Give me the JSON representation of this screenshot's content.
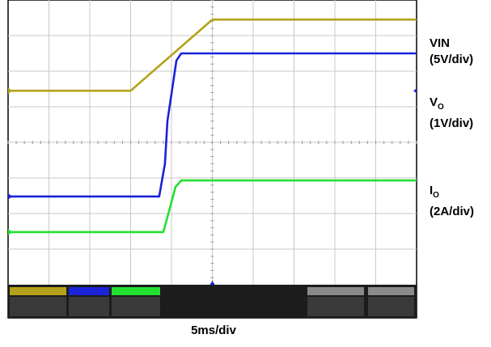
{
  "chart_data": {
    "type": "line",
    "xlabel": "5ms/div",
    "x_unit": "ms",
    "xlim": [
      0,
      50
    ],
    "y_unit": "div",
    "ylim": [
      0,
      8
    ],
    "grid": true,
    "series": [
      {
        "name": "VIN",
        "scale": "(5V/div)",
        "color": "#b4a21a",
        "x": [
          0,
          15,
          25,
          50
        ],
        "y": [
          5.45,
          5.45,
          7.45,
          7.45
        ]
      },
      {
        "name": "VO",
        "scale": "(1V/div)",
        "color": "#1a23d8",
        "x": [
          0,
          18.5,
          19.2,
          19.5,
          20.6,
          21.2,
          50
        ],
        "y": [
          2.48,
          2.48,
          3.4,
          4.6,
          6.3,
          6.5,
          6.5
        ]
      },
      {
        "name": "IO",
        "scale": "(2A/div)",
        "color": "#22e030",
        "x": [
          0,
          19.0,
          19.5,
          20.5,
          21.2,
          50
        ],
        "y": [
          1.48,
          1.48,
          1.9,
          2.75,
          2.93,
          2.93
        ]
      }
    ],
    "colors": {
      "screen_bg": "#ffffff",
      "grid": "#c8c8c8",
      "axis_ticks": "#9a9aa8",
      "frame": "#000000",
      "status_bar": "#202020"
    }
  },
  "labels": {
    "vin_line1": "VIN",
    "vin_line2": "(5V/div)",
    "vo_main": "V",
    "vo_sub": "O",
    "vo_line2": "(1V/div)",
    "io_main": "I",
    "io_sub": "O",
    "io_line2": "(2A/div)"
  }
}
